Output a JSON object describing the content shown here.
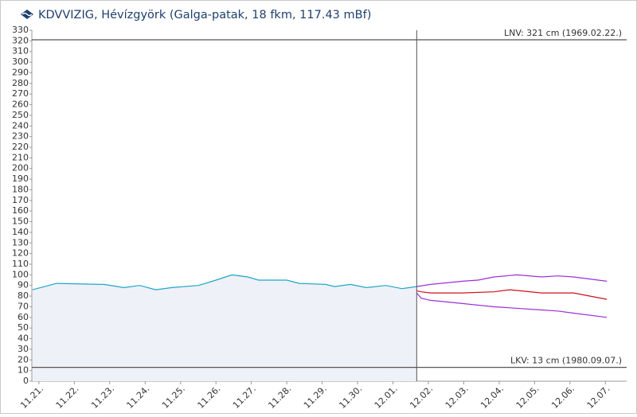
{
  "chart_data": {
    "type": "line",
    "title": "KDVVIZIG, Hévízgyörk (Galga-patak, 18 fkm, 117.43 mBf)",
    "ylim": [
      0,
      330
    ],
    "yticks": [
      0,
      10,
      20,
      30,
      40,
      50,
      60,
      70,
      80,
      90,
      100,
      110,
      120,
      130,
      140,
      150,
      160,
      170,
      180,
      190,
      200,
      210,
      220,
      230,
      240,
      250,
      260,
      270,
      280,
      290,
      300,
      310,
      320,
      330
    ],
    "xlim": [
      -0.2,
      16.6
    ],
    "xticks": [
      {
        "value": 0,
        "label": "11.21."
      },
      {
        "value": 1,
        "label": "11.22."
      },
      {
        "value": 2,
        "label": "11.23."
      },
      {
        "value": 3,
        "label": "11.24."
      },
      {
        "value": 4,
        "label": "11.25."
      },
      {
        "value": 5,
        "label": "11.26."
      },
      {
        "value": 6,
        "label": "11.27."
      },
      {
        "value": 7,
        "label": "11.28."
      },
      {
        "value": 8,
        "label": "11.29."
      },
      {
        "value": 9,
        "label": "11.30."
      },
      {
        "value": 10,
        "label": "12.01."
      },
      {
        "value": 11,
        "label": "12.02."
      },
      {
        "value": 12,
        "label": "12.03."
      },
      {
        "value": 13,
        "label": "12.04."
      },
      {
        "value": 14,
        "label": "12.05."
      },
      {
        "value": 15,
        "label": "12.06."
      },
      {
        "value": 16,
        "label": "12.07."
      }
    ],
    "grid": false,
    "series": [
      {
        "color": "#1fa6c9",
        "fill": "#eef1f7",
        "x": [
          -0.18,
          0.5,
          1.84,
          2.4,
          2.85,
          3.3,
          3.75,
          4.5,
          5.0,
          5.45,
          5.9,
          6.2,
          7.0,
          7.35,
          8.1,
          8.35,
          8.8,
          9.25,
          9.8,
          10.25,
          10.67
        ],
        "values": [
          86,
          92,
          91,
          88,
          90,
          86,
          88,
          90,
          95,
          100,
          98,
          95,
          95,
          92,
          91,
          89,
          91,
          88,
          90,
          87,
          89
        ]
      },
      {
        "color": "#9b30d9",
        "x": [
          10.67,
          11.06,
          11.96,
          12.4,
          12.85,
          13.5,
          14.2,
          14.65,
          15.1,
          16.04
        ],
        "values": [
          89,
          91,
          94,
          95,
          98,
          100,
          98,
          99,
          98,
          94
        ]
      },
      {
        "color": "#d0101a",
        "x": [
          10.67,
          10.8,
          11.06,
          11.96,
          12.85,
          13.3,
          14.2,
          15.1,
          16.04
        ],
        "values": [
          85,
          84,
          83,
          83,
          84,
          86,
          83,
          83,
          77
        ]
      },
      {
        "color": "#9b30d9",
        "x": [
          10.67,
          10.8,
          11.06,
          11.96,
          12.85,
          13.3,
          14.2,
          14.65,
          15.1,
          16.04
        ],
        "values": [
          83,
          78,
          76,
          73,
          70,
          69,
          67,
          66,
          64,
          60
        ]
      }
    ],
    "reference_lines": [
      {
        "value": 321,
        "label": "LNV: 321 cm (1969.02.22.)"
      },
      {
        "value": 13,
        "label": "LKV: 13 cm (1980.09.07.)"
      }
    ],
    "vertical_line_x": 10.67
  }
}
